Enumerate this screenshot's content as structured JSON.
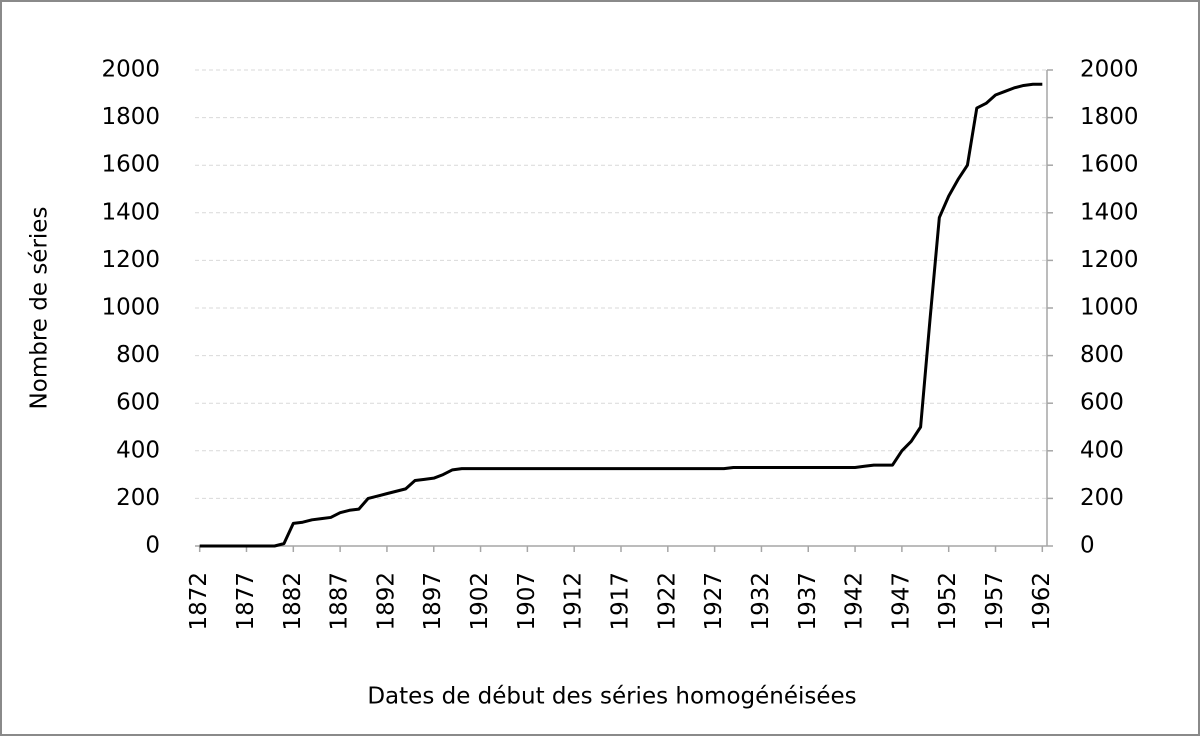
{
  "chart_data": {
    "type": "line",
    "y_label": "Nombre de séries",
    "x_label": "Dates de début des séries homogénéisées",
    "x": [
      1872,
      1873,
      1874,
      1875,
      1876,
      1877,
      1878,
      1879,
      1880,
      1881,
      1882,
      1883,
      1884,
      1885,
      1886,
      1887,
      1888,
      1889,
      1890,
      1891,
      1892,
      1893,
      1894,
      1895,
      1896,
      1897,
      1898,
      1899,
      1900,
      1901,
      1902,
      1903,
      1904,
      1905,
      1906,
      1907,
      1908,
      1909,
      1910,
      1911,
      1912,
      1913,
      1914,
      1915,
      1916,
      1917,
      1918,
      1919,
      1920,
      1921,
      1922,
      1923,
      1924,
      1925,
      1926,
      1927,
      1928,
      1929,
      1930,
      1931,
      1932,
      1933,
      1934,
      1935,
      1936,
      1937,
      1938,
      1939,
      1940,
      1941,
      1942,
      1943,
      1944,
      1945,
      1946,
      1947,
      1948,
      1949,
      1950,
      1951,
      1952,
      1953,
      1954,
      1955,
      1956,
      1957,
      1958,
      1959,
      1960,
      1961,
      1962
    ],
    "series": [
      {
        "color": "#000000",
        "values": [
          0,
          0,
          0,
          0,
          0,
          0,
          0,
          0,
          0,
          10,
          95,
          100,
          110,
          115,
          120,
          140,
          150,
          155,
          200,
          210,
          220,
          230,
          240,
          275,
          280,
          285,
          300,
          320,
          325,
          325,
          325,
          325,
          325,
          325,
          325,
          325,
          325,
          325,
          325,
          325,
          325,
          325,
          325,
          325,
          325,
          325,
          325,
          325,
          325,
          325,
          325,
          325,
          325,
          325,
          325,
          325,
          325,
          330,
          330,
          330,
          330,
          330,
          330,
          330,
          330,
          330,
          330,
          330,
          330,
          330,
          330,
          335,
          340,
          340,
          340,
          400,
          440,
          500,
          950,
          1380,
          1470,
          1540,
          1600,
          1840,
          1860,
          1895,
          1910,
          1925,
          1935,
          1940,
          1940
        ]
      }
    ],
    "xlim": [
      1871.5,
      1962.5
    ],
    "xticks": [
      1872,
      1877,
      1882,
      1887,
      1892,
      1897,
      1902,
      1907,
      1912,
      1917,
      1922,
      1927,
      1932,
      1937,
      1942,
      1947,
      1952,
      1957,
      1962
    ],
    "ylim": [
      0,
      2000
    ],
    "yticks": [
      0,
      200,
      400,
      600,
      800,
      1000,
      1200,
      1400,
      1600,
      1800,
      2000
    ],
    "y2lim": [
      0,
      2000
    ],
    "y2ticks": [
      0,
      200,
      400,
      600,
      800,
      1000,
      1200,
      1400,
      1600,
      1800,
      2000
    ],
    "grid": true
  }
}
